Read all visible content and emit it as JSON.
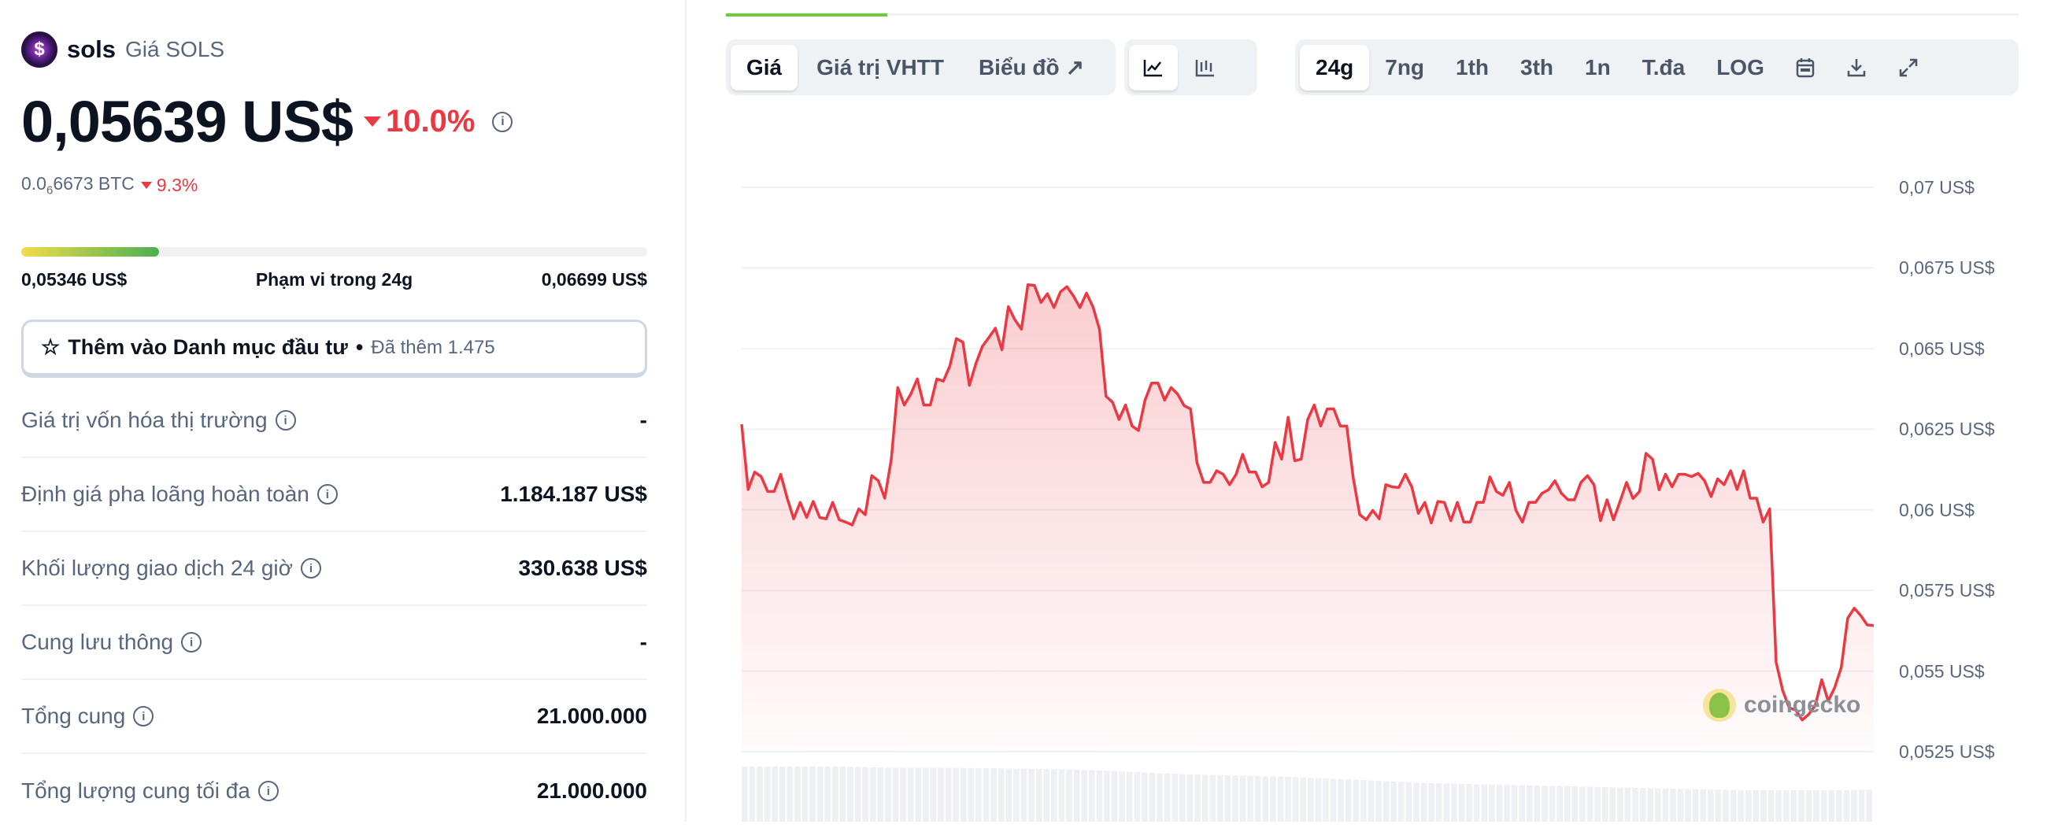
{
  "coin": {
    "name": "sols",
    "subtitle": "Giá SOLS",
    "logo_letter": "$",
    "price": "0,05639 US$",
    "change_24h": "10.0%",
    "change_direction": "down",
    "btc_prefix": "0.0",
    "btc_sub": "6",
    "btc_rest": "6673 BTC",
    "btc_change": "9.3%"
  },
  "range": {
    "low": "0,05346 US$",
    "label": "Phạm vi trong 24g",
    "high": "0,06699 US$",
    "position_fraction": 0.22
  },
  "watchlist": {
    "label": "Thêm vào Danh mục đầu tư",
    "dot": "•",
    "added": "Đã thêm 1.475"
  },
  "stats": [
    {
      "label": "Giá trị vốn hóa thị trường",
      "value": "-"
    },
    {
      "label": "Định giá pha loãng hoàn toàn",
      "value": "1.184.187 US$"
    },
    {
      "label": "Khối lượng giao dịch 24 giờ",
      "value": "330.638 US$"
    },
    {
      "label": "Cung lưu thông",
      "value": "-"
    },
    {
      "label": "Tổng cung",
      "value": "21.000.000"
    },
    {
      "label": "Tổng lượng cung tối đa",
      "value": "21.000.000"
    }
  ],
  "toolbar": {
    "tabs": [
      "Giá",
      "Giá trị VHTT",
      "Biểu đồ"
    ],
    "active_tab": "Giá",
    "chart_types": [
      "line-chart-icon",
      "candlestick-icon"
    ],
    "ranges": [
      "24g",
      "7ng",
      "1th",
      "3th",
      "1n",
      "T.đa",
      "LOG"
    ],
    "active_range": "24g",
    "icons": [
      "calendar-icon",
      "download-icon",
      "expand-icon"
    ]
  },
  "watermark": "coingecko",
  "colors": {
    "line": "#ea3943",
    "accent": "#6cc93c",
    "down": "#ea3943"
  },
  "chart_data": {
    "type": "area",
    "ylim": [
      0.0525,
      0.07
    ],
    "yticks": [
      "0,07 US$",
      "0,0675 US$",
      "0,065 US$",
      "0,0625 US$",
      "0,06 US$",
      "0,0575 US$",
      "0,055 US$",
      "0,0525 US$"
    ],
    "ytick_values": [
      0.07,
      0.0675,
      0.065,
      0.0625,
      0.06,
      0.0575,
      0.055,
      0.0525
    ],
    "grid": true,
    "values": [
      0.06265,
      0.06063,
      0.06117,
      0.06103,
      0.06057,
      0.06057,
      0.0611,
      0.06036,
      0.05972,
      0.06023,
      0.05976,
      0.06026,
      0.05976,
      0.05972,
      0.06023,
      0.05969,
      0.05962,
      0.05953,
      0.06003,
      0.05985,
      0.06106,
      0.0609,
      0.06036,
      0.06157,
      0.06379,
      0.06325,
      0.06359,
      0.06406,
      0.06325,
      0.06325,
      0.06406,
      0.06399,
      0.06446,
      0.06531,
      0.0652,
      0.06386,
      0.06453,
      0.06507,
      0.06534,
      0.06563,
      0.06496,
      0.0663,
      0.06589,
      0.0656,
      0.06698,
      0.06696,
      0.06643,
      0.0667,
      0.06627,
      0.06676,
      0.06692,
      0.06663,
      0.06627,
      0.06672,
      0.06629,
      0.0656,
      0.06352,
      0.06334,
      0.0628,
      0.06325,
      0.0626,
      0.06246,
      0.0634,
      0.06393,
      0.06393,
      0.0634,
      0.06379,
      0.06359,
      0.06323,
      0.06313,
      0.06145,
      0.06085,
      0.06085,
      0.06121,
      0.0611,
      0.06078,
      0.0611,
      0.06172,
      0.06117,
      0.06117,
      0.06071,
      0.06085,
      0.06209,
      0.06157,
      0.06287,
      0.06152,
      0.06157,
      0.0628,
      0.06325,
      0.0626,
      0.06313,
      0.06313,
      0.0626,
      0.0626,
      0.06098,
      0.05985,
      0.05969,
      0.05998,
      0.05972,
      0.06078,
      0.06071,
      0.06069,
      0.0611,
      0.06071,
      0.05989,
      0.06023,
      0.05959,
      0.06026,
      0.06023,
      0.05966,
      0.06023,
      0.05962,
      0.05962,
      0.06023,
      0.06023,
      0.06102,
      0.06057,
      0.06045,
      0.06085,
      0.05998,
      0.05962,
      0.06023,
      0.06023,
      0.06051,
      0.06062,
      0.0609,
      0.06051,
      0.06031,
      0.06031,
      0.06085,
      0.06106,
      0.06078,
      0.05966,
      0.06031,
      0.05969,
      0.06026,
      0.06085,
      0.06035,
      0.06057,
      0.06175,
      0.06157,
      0.06062,
      0.0611,
      0.06071,
      0.0611,
      0.0611,
      0.06103,
      0.06113,
      0.0609,
      0.06041,
      0.06096,
      0.06078,
      0.06121,
      0.06063,
      0.06121,
      0.06036,
      0.06036,
      0.05962,
      0.06003,
      0.05527,
      0.0544,
      0.05386,
      0.05379,
      0.05348,
      0.05366,
      0.05393,
      0.05473,
      0.05407,
      0.05449,
      0.05511,
      0.05664,
      0.05695,
      0.05672,
      0.05643,
      0.05641
    ],
    "volume_relative": [
      1,
      1,
      1,
      0.98,
      0.98,
      0.97,
      0.96,
      0.94,
      0.9,
      0.86,
      0.84,
      0.82,
      0.78,
      0.74,
      0.7,
      0.68,
      0.66,
      0.64,
      0.62,
      0.6,
      0.58,
      0.57,
      0.57,
      0.58
    ]
  }
}
